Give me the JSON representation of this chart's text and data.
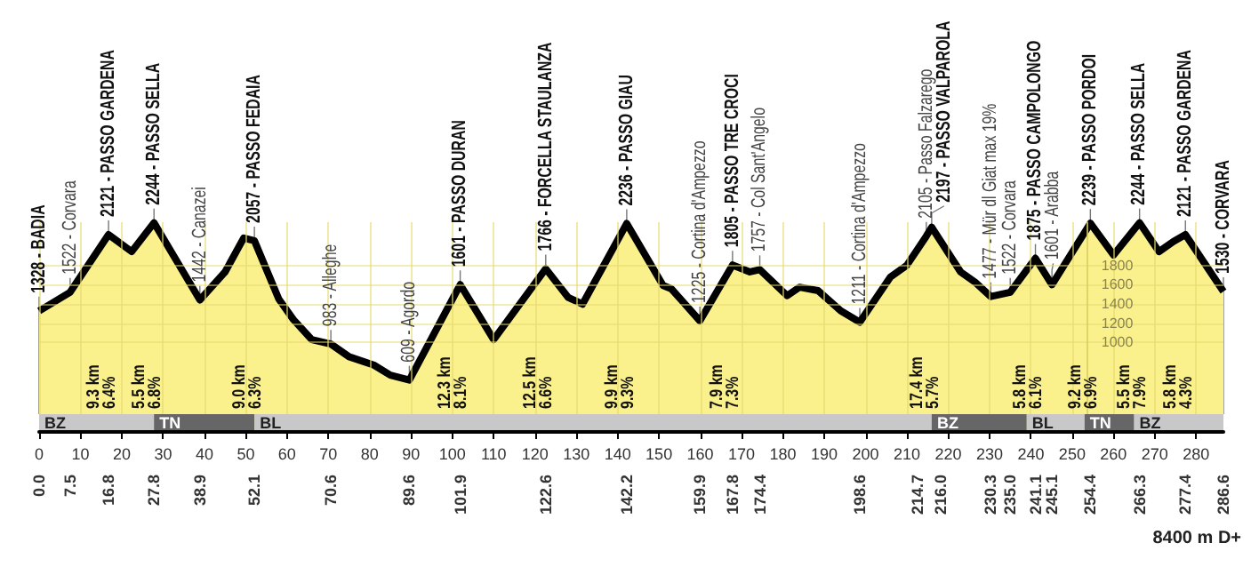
{
  "chart_data": {
    "type": "area",
    "x": [
      0,
      7.5,
      16.8,
      22.4,
      27.8,
      38.9,
      45,
      49.5,
      52.1,
      58,
      61.5,
      66,
      70.6,
      75,
      81,
      85,
      89.6,
      101.9,
      110,
      122.6,
      128,
      131.5,
      142.2,
      151,
      153,
      159.9,
      167.8,
      172,
      174.4,
      181,
      184,
      188.5,
      194,
      198.6,
      206,
      210,
      214.7,
      216,
      223,
      226.5,
      230.3,
      235,
      241.1,
      245.1,
      254.4,
      260,
      266.3,
      271,
      274.5,
      277.4,
      286.6
    ],
    "series": [
      {
        "color": "#faf08c",
        "values": [
          1328,
          1522,
          2121,
          1944,
          2244,
          1442,
          1733,
          2085,
          2057,
          1451,
          1240,
          1029,
          983,
          852,
          765,
          660,
          609,
          1601,
          1029,
          1766,
          1469,
          1398,
          2236,
          1592,
          1557,
          1225,
          1805,
          1733,
          1757,
          1486,
          1574,
          1539,
          1328,
          1211,
          1680,
          1803,
          2105,
          2197,
          1733,
          1627,
          1477,
          1522,
          1875,
          1601,
          2239,
          1909,
          2244,
          1944,
          2050,
          2121,
          1530
        ]
      }
    ],
    "xlim": [
      0,
      286.6
    ],
    "xticks": [
      0,
      10,
      20,
      30,
      40,
      50,
      60,
      70,
      80,
      90,
      100,
      110,
      120,
      130,
      140,
      150,
      160,
      170,
      180,
      190,
      200,
      210,
      220,
      230,
      240,
      250,
      260,
      270,
      280
    ],
    "x2lim": [
      0,
      286.6
    ],
    "x2ticks": [
      {
        "value": 0,
        "label": "0.0"
      },
      7.5,
      16.8,
      27.8,
      38.9,
      52.1,
      70.6,
      89.6,
      101.9,
      122.6,
      142.2,
      159.9,
      167.8,
      174.4,
      198.6,
      214.7,
      {
        "value": 216,
        "label": "216.0"
      },
      230.3,
      {
        "value": 235,
        "label": "235.0"
      },
      241.1,
      245.1,
      254.4,
      266.3,
      277.4,
      286.6
    ],
    "ylim": [
      70,
      2250
    ],
    "yticks": [
      1000,
      1200,
      1400,
      1600,
      1800
    ],
    "grid": true,
    "bands": [
      {
        "axis": "x",
        "from": 0,
        "to": 27.8,
        "label": "BZ",
        "color": "#c8c8c8"
      },
      {
        "axis": "x",
        "from": 27.8,
        "to": 52.1,
        "label": "TN",
        "color": "#666666"
      },
      {
        "axis": "x",
        "from": 52.1,
        "to": 216,
        "label": "BL",
        "color": "#c8c8c8"
      },
      {
        "axis": "x",
        "from": 216,
        "to": 239,
        "label": "BZ",
        "color": "#666666"
      },
      {
        "axis": "x",
        "from": 239,
        "to": 253,
        "label": "BL",
        "color": "#c8c8c8"
      },
      {
        "axis": "x",
        "from": 253,
        "to": 265,
        "label": "TN",
        "color": "#666666"
      },
      {
        "axis": "x",
        "from": 265,
        "to": 286.6,
        "label": "BZ",
        "color": "#c8c8c8"
      }
    ],
    "annotations": [
      {
        "text": "1328 - BADIA",
        "x": 0,
        "y": 1328
      },
      {
        "text": "1522 - Corvara",
        "x": 7.5,
        "y": 1522
      },
      {
        "text": "2121 - PASSO GARDENA",
        "x": 16.8,
        "y": 2121
      },
      {
        "text": "2244 - PASSO SELLA",
        "x": 27.8,
        "y": 2244
      },
      {
        "text": "1442 - Canazei",
        "x": 38.9,
        "y": 1442
      },
      {
        "text": "2057 - PASSO FEDAIA",
        "x": 52.1,
        "y": 2057
      },
      {
        "text": "983 - Alleghe",
        "x": 70.6,
        "y": 983
      },
      {
        "text": "609 - Agordo",
        "x": 89.6,
        "y": 609
      },
      {
        "text": "1601 - PASSO DURAN",
        "x": 101.9,
        "y": 1601
      },
      {
        "text": "1766 - FORCELLA STAULANZA",
        "x": 122.6,
        "y": 1766
      },
      {
        "text": "2236 - PASSO GIAU",
        "x": 142.2,
        "y": 2236
      },
      {
        "text": "1225 - Cortina d'Ampezzo",
        "x": 159.9,
        "y": 1225
      },
      {
        "text": "1805 - PASSO TRE CROCI",
        "x": 167.8,
        "y": 1805
      },
      {
        "text": "1757 - Col Sant'Angelo",
        "x": 174.4,
        "y": 1757
      },
      {
        "text": "1211 - Cortina d'Ampezzo",
        "x": 198.6,
        "y": 1211
      },
      {
        "text": "2105 - Passo Falzarego",
        "x": 214.7,
        "y": 2105
      },
      {
        "text": "2197 - PASSO VALPAROLA",
        "x": 216,
        "y": 2197
      },
      {
        "text": "1477 - Mür dl Giat max 19%",
        "x": 230.3,
        "y": 1477
      },
      {
        "text": "1522 - Corvara",
        "x": 235,
        "y": 1522
      },
      {
        "text": "1875 - PASSO CAMPOLONGO",
        "x": 241.1,
        "y": 1875
      },
      {
        "text": "1601 - Arabba",
        "x": 245.1,
        "y": 1601
      },
      {
        "text": "2239 - PASSO PORDOI",
        "x": 254.4,
        "y": 2239
      },
      {
        "text": "2244 - PASSO SELLA",
        "x": 266.3,
        "y": 2244
      },
      {
        "text": "2121 - PASSO GARDENA",
        "x": 277.4,
        "y": 2121
      },
      {
        "text": "1530 - CORVARA",
        "x": 286.6,
        "y": 1530
      },
      "9.3 km",
      "6.4%",
      "5.5 km",
      "6.8%",
      "9.0 km",
      "6.3%",
      "12.3 km",
      "8.1%",
      "12.5 km",
      "6.6%",
      "9.9 km",
      "9.3%",
      "7.9 km",
      "7.3%",
      "17.4 km",
      "5.7%",
      "5.8 km",
      "6.1%",
      "9.2 km",
      "6.9%",
      "5.5 km",
      "7.9%",
      "5.8 km",
      "4.3%",
      "8400 m D+"
    ]
  }
}
